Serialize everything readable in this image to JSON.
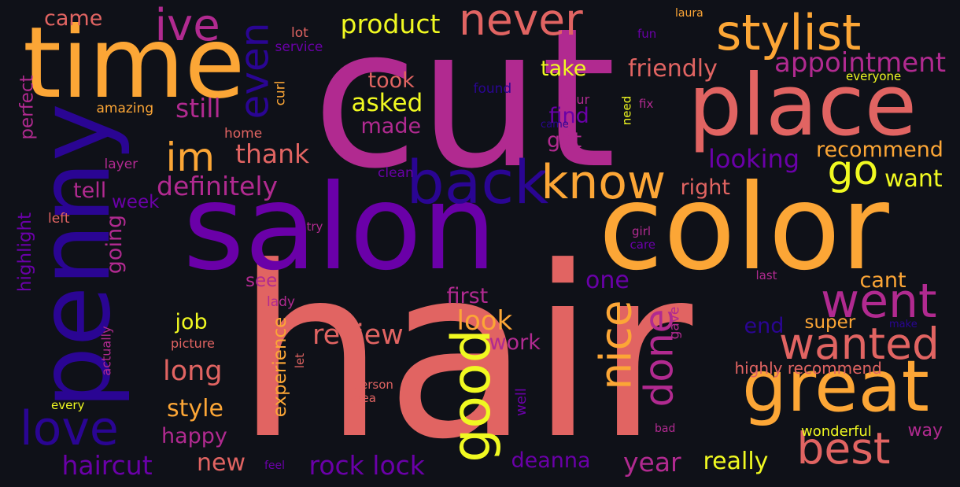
{
  "background": "#0f1118",
  "palette": {
    "yellow": "#f0f921",
    "orange": "#fca636",
    "salmon": "#e16462",
    "magenta": "#b12a90",
    "purple": "#6a00a8",
    "indigo": "#2a0593"
  },
  "words": [
    {
      "text": "hair",
      "color": "#e16462"
    },
    {
      "text": "cut",
      "color": "#b12a90"
    },
    {
      "text": "salon",
      "color": "#6a00a8"
    },
    {
      "text": "color",
      "color": "#fca636"
    },
    {
      "text": "penny",
      "color": "#2a0593"
    },
    {
      "text": "time",
      "color": "#fca636"
    },
    {
      "text": "place",
      "color": "#e16462"
    },
    {
      "text": "great",
      "color": "#fca636"
    },
    {
      "text": "good",
      "color": "#f0f921"
    },
    {
      "text": "back",
      "color": "#2a0593"
    },
    {
      "text": "stylist",
      "color": "#fca636"
    },
    {
      "text": "love",
      "color": "#2a0593"
    },
    {
      "text": "know",
      "color": "#fca636"
    },
    {
      "text": "went",
      "color": "#b12a90"
    },
    {
      "text": "wanted",
      "color": "#e16462"
    },
    {
      "text": "best",
      "color": "#e16462"
    },
    {
      "text": "never",
      "color": "#e16462"
    },
    {
      "text": "ive",
      "color": "#b12a90"
    },
    {
      "text": "even",
      "color": "#2a0593"
    },
    {
      "text": "im",
      "color": "#fca636"
    },
    {
      "text": "go",
      "color": "#f0f921"
    },
    {
      "text": "nice",
      "color": "#fca636"
    },
    {
      "text": "done",
      "color": "#b12a90"
    },
    {
      "text": "product",
      "color": "#f0f921"
    },
    {
      "text": "appointment",
      "color": "#b12a90"
    },
    {
      "text": "friendly",
      "color": "#e16462"
    },
    {
      "text": "take",
      "color": "#f0f921"
    },
    {
      "text": "took",
      "color": "#e16462"
    },
    {
      "text": "asked",
      "color": "#f0f921"
    },
    {
      "text": "made",
      "color": "#b12a90"
    },
    {
      "text": "find",
      "color": "#6a00a8"
    },
    {
      "text": "got",
      "color": "#b12a90"
    },
    {
      "text": "still",
      "color": "#b12a90"
    },
    {
      "text": "thank",
      "color": "#e16462"
    },
    {
      "text": "definitely",
      "color": "#b12a90"
    },
    {
      "text": "tell",
      "color": "#b12a90"
    },
    {
      "text": "week",
      "color": "#6a00a8"
    },
    {
      "text": "looking",
      "color": "#6a00a8"
    },
    {
      "text": "recommend",
      "color": "#fca636"
    },
    {
      "text": "want",
      "color": "#f0f921"
    },
    {
      "text": "right",
      "color": "#e16462"
    },
    {
      "text": "one",
      "color": "#6a00a8"
    },
    {
      "text": "cant",
      "color": "#fca636"
    },
    {
      "text": "first",
      "color": "#b12a90"
    },
    {
      "text": "look",
      "color": "#fca636"
    },
    {
      "text": "review",
      "color": "#e16462"
    },
    {
      "text": "work",
      "color": "#b12a90"
    },
    {
      "text": "long",
      "color": "#e16462"
    },
    {
      "text": "job",
      "color": "#f0f921"
    },
    {
      "text": "style",
      "color": "#fca636"
    },
    {
      "text": "happy",
      "color": "#b12a90"
    },
    {
      "text": "haircut",
      "color": "#6a00a8"
    },
    {
      "text": "new",
      "color": "#e16462"
    },
    {
      "text": "rock lock",
      "color": "#6a00a8"
    },
    {
      "text": "deanna",
      "color": "#6a00a8"
    },
    {
      "text": "year",
      "color": "#b12a90"
    },
    {
      "text": "really",
      "color": "#f0f921"
    },
    {
      "text": "end",
      "color": "#2a0593"
    },
    {
      "text": "super",
      "color": "#fca636"
    },
    {
      "text": "highly recommend",
      "color": "#e16462"
    },
    {
      "text": "way",
      "color": "#b12a90"
    },
    {
      "text": "wonderful",
      "color": "#f0f921"
    },
    {
      "text": "going",
      "color": "#b12a90"
    },
    {
      "text": "see",
      "color": "#b12a90"
    },
    {
      "text": "experience",
      "color": "#fca636"
    },
    {
      "text": "highlight",
      "color": "#6a00a8"
    },
    {
      "text": "perfect",
      "color": "#b12a90"
    },
    {
      "text": "came",
      "color": "#e16462"
    },
    {
      "text": "lot",
      "color": "#e16462"
    },
    {
      "text": "service",
      "color": "#6a00a8"
    },
    {
      "text": "amazing",
      "color": "#fca636"
    },
    {
      "text": "curl",
      "color": "#fca636"
    },
    {
      "text": "home",
      "color": "#e16462"
    },
    {
      "text": "layer",
      "color": "#b12a90"
    },
    {
      "text": "clean",
      "color": "#6a00a8"
    },
    {
      "text": "found",
      "color": "#2a0593"
    },
    {
      "text": "hour",
      "color": "#b12a90"
    },
    {
      "text": "need",
      "color": "#f0f921"
    },
    {
      "text": "fix",
      "color": "#b12a90"
    },
    {
      "text": "fun",
      "color": "#6a00a8"
    },
    {
      "text": "laura",
      "color": "#fca636"
    },
    {
      "text": "everyone",
      "color": "#f0f921"
    },
    {
      "text": "left",
      "color": "#e16462"
    },
    {
      "text": "try",
      "color": "#b12a90"
    },
    {
      "text": "girl",
      "color": "#b12a90"
    },
    {
      "text": "care",
      "color": "#6a00a8"
    },
    {
      "text": "last",
      "color": "#b12a90"
    },
    {
      "text": "lady",
      "color": "#b12a90"
    },
    {
      "text": "actually",
      "color": "#b12a90"
    },
    {
      "text": "picture",
      "color": "#e16462"
    },
    {
      "text": "let",
      "color": "#e16462"
    },
    {
      "text": "person",
      "color": "#e16462"
    },
    {
      "text": "area",
      "color": "#e16462"
    },
    {
      "text": "well",
      "color": "#6a00a8"
    },
    {
      "text": "every",
      "color": "#f0f921"
    },
    {
      "text": "feel",
      "color": "#6a00a8"
    },
    {
      "text": "bad",
      "color": "#b12a90"
    },
    {
      "text": "gave",
      "color": "#b12a90"
    },
    {
      "text": "make",
      "color": "#2a0593"
    },
    {
      "text": "came",
      "color": "#2a0593"
    }
  ]
}
